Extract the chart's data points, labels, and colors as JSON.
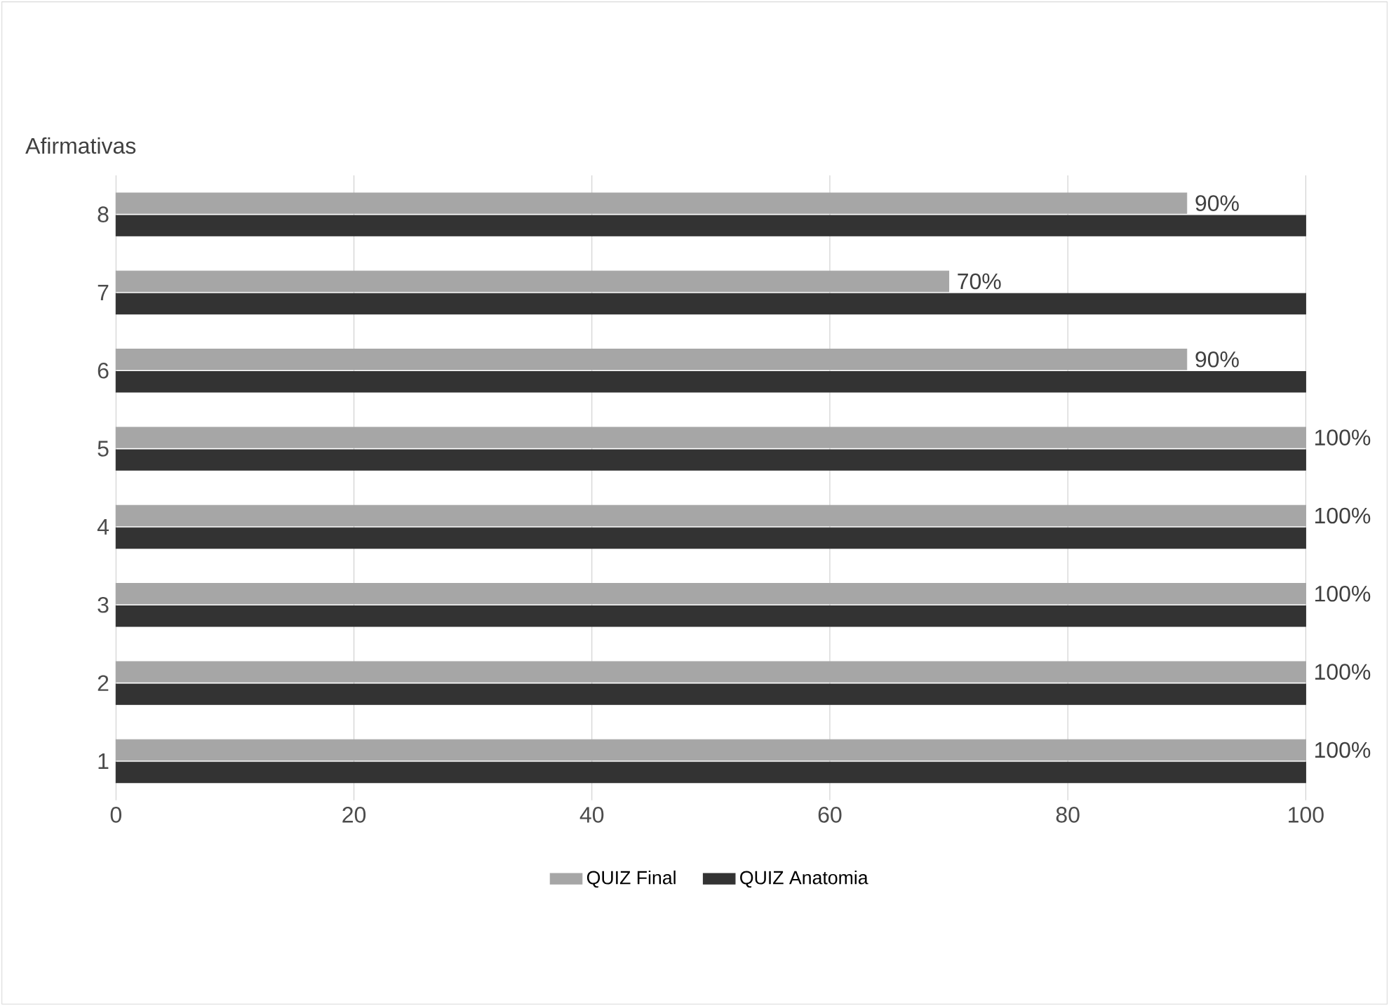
{
  "chart_data": {
    "type": "bar",
    "orientation": "horizontal",
    "ylabel": "Afirmativas",
    "categories": [
      "8",
      "7",
      "6",
      "5",
      "4",
      "3",
      "2",
      "1"
    ],
    "series": [
      {
        "name": "QUIZ Final",
        "color": "#a6a6a6",
        "values": [
          90,
          70,
          90,
          100,
          100,
          100,
          100,
          100
        ],
        "value_labels": [
          "90%",
          "70%",
          "90%",
          "100%",
          "100%",
          "100%",
          "100%",
          "100%"
        ]
      },
      {
        "name": "QUIZ Anatomia",
        "color": "#333333",
        "values": [
          100,
          100,
          100,
          100,
          100,
          100,
          100,
          100
        ]
      }
    ],
    "xlim": [
      0,
      100
    ],
    "xticks": [
      0,
      20,
      40,
      60,
      80,
      100
    ],
    "grid": "x",
    "legend": "bottom"
  }
}
